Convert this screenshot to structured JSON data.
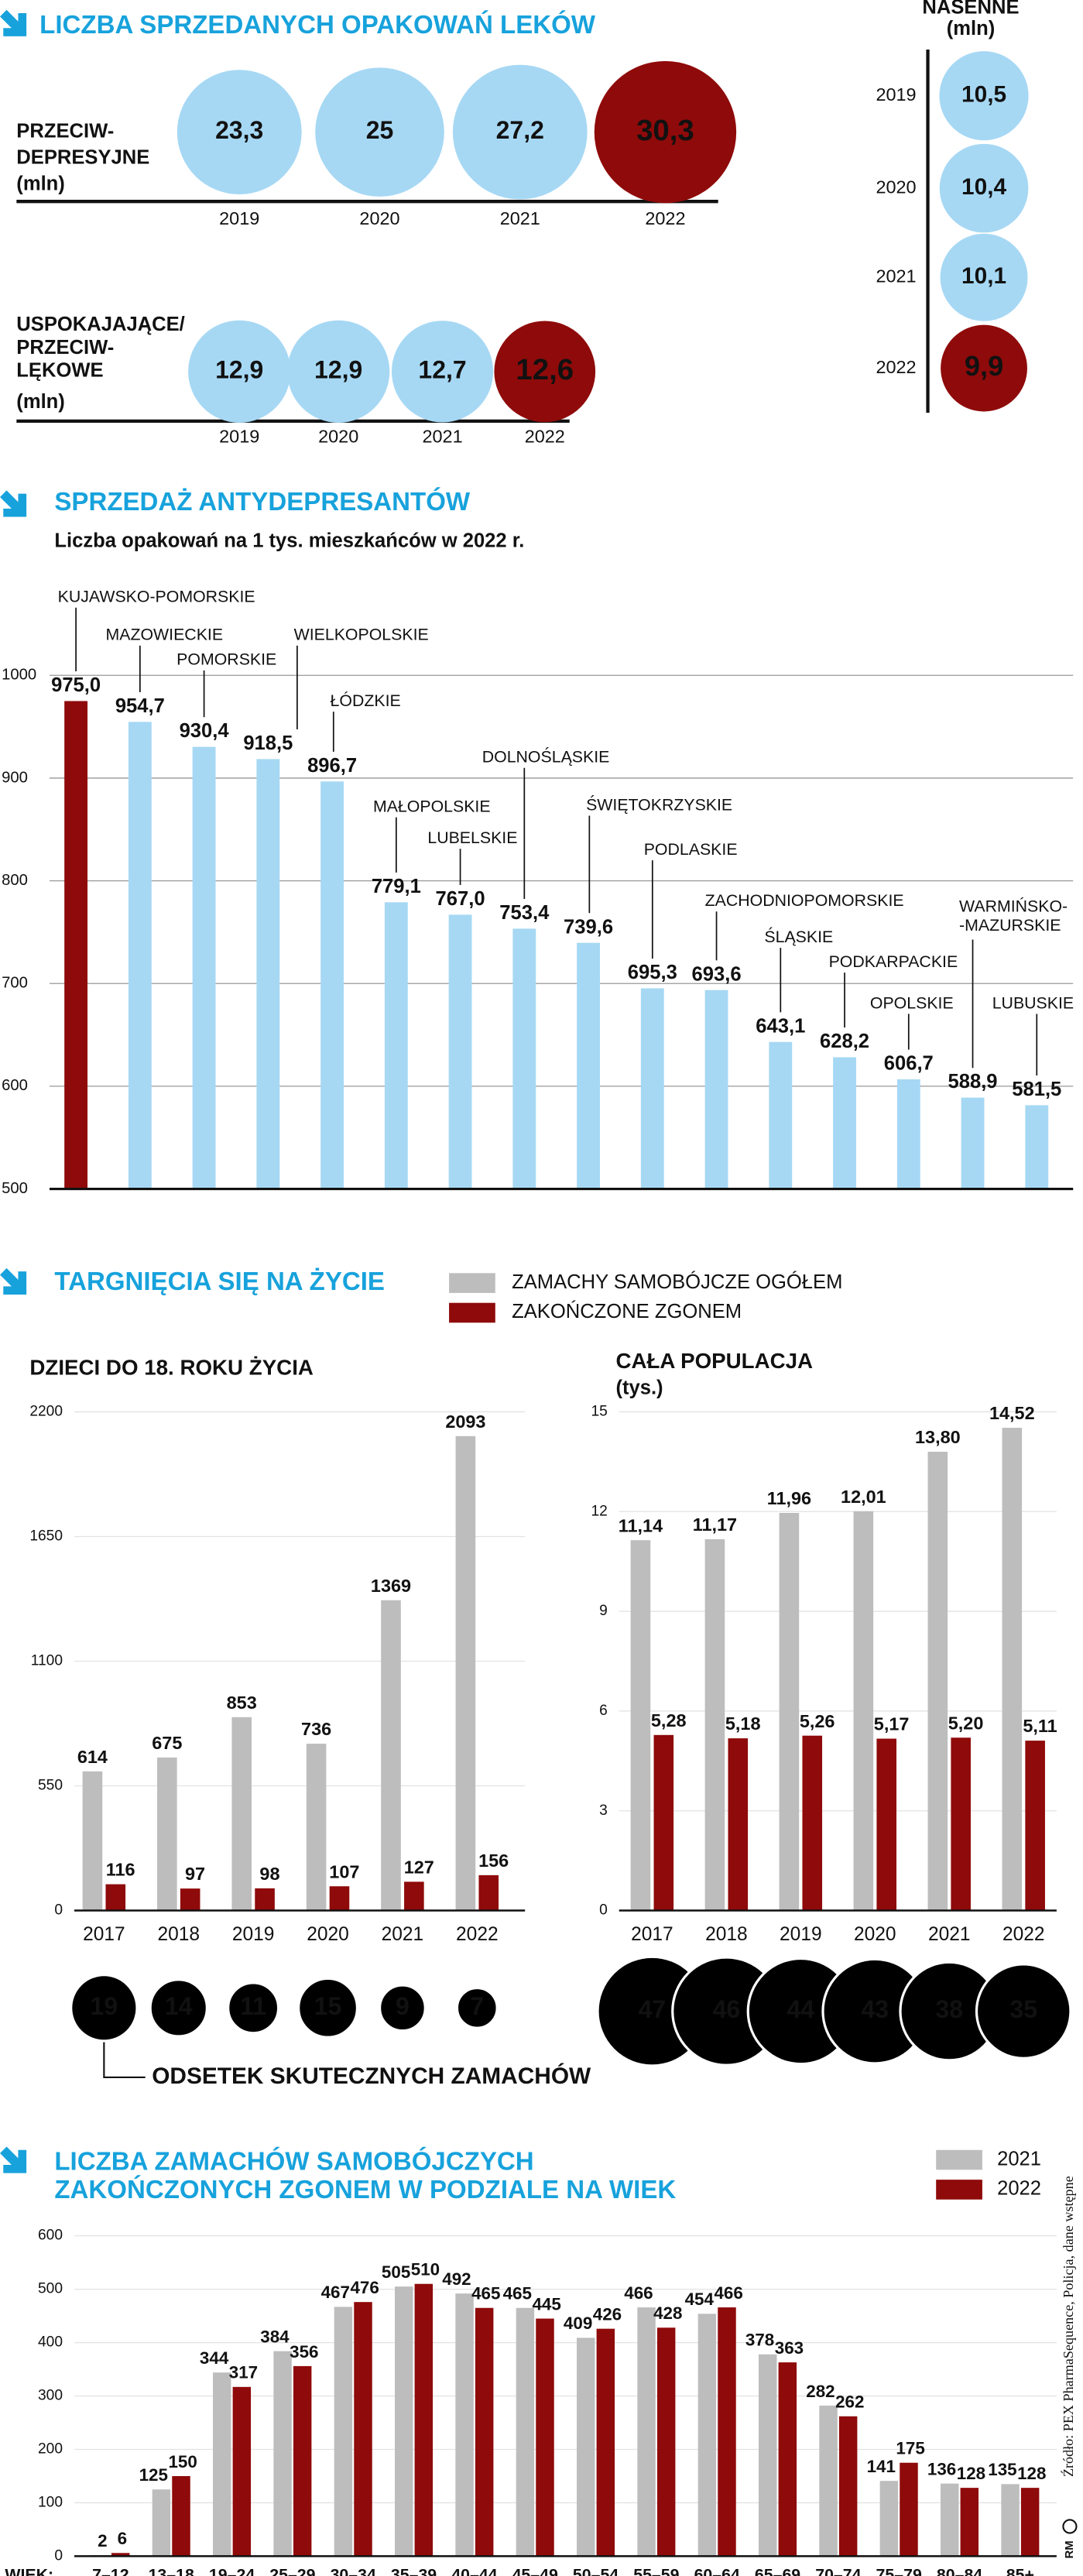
{
  "source": "Źródło: PEX PharmaSequence, Policja, dane wstępne",
  "author": "RM",
  "chart_data": [
    {
      "type": "bubble",
      "title": "LICZBA SPRZEDANYCH OPAKOWAŃ LEKÓW",
      "label": [
        "PRZECIW-",
        "DEPRESYJNE",
        "(mln)"
      ],
      "categories": [
        "2019",
        "2020",
        "2021",
        "2022"
      ],
      "values": [
        23.3,
        25,
        27.2,
        30.3
      ],
      "value_labels": [
        "23,3",
        "25",
        "27,2",
        "30,3"
      ],
      "colors": [
        "#a6d8f4",
        "#a6d8f4",
        "#a6d8f4",
        "#8f0a0a"
      ]
    },
    {
      "type": "bubble",
      "label": [
        "USPOKAJAJĄCE/",
        "PRZECIW-",
        "LĘKOWE",
        "(mln)"
      ],
      "categories": [
        "2019",
        "2020",
        "2021",
        "2022"
      ],
      "values": [
        12.9,
        12.9,
        12.7,
        12.6
      ],
      "value_labels": [
        "12,9",
        "12,9",
        "12,7",
        "12,6"
      ],
      "colors": [
        "#a6d8f4",
        "#a6d8f4",
        "#a6d8f4",
        "#8f0a0a"
      ]
    },
    {
      "type": "bubble",
      "orientation": "vertical",
      "label": [
        "NASENNE",
        "(mln)"
      ],
      "categories": [
        "2019",
        "2020",
        "2021",
        "2022"
      ],
      "values": [
        10.5,
        10.4,
        10.1,
        9.9
      ],
      "value_labels": [
        "10,5",
        "10,4",
        "10,1",
        "9,9"
      ],
      "colors": [
        "#a6d8f4",
        "#a6d8f4",
        "#a6d8f4",
        "#8f0a0a"
      ]
    },
    {
      "type": "bar",
      "title": "SPRZEDAŻ ANTYDEPRESANTÓW",
      "subtitle": "Liczba opakowań na 1 tys. mieszkańców w 2022 r.",
      "categories": [
        "KUJAWSKO-POMORSKIE",
        "MAZOWIECKIE",
        "POMORSKIE",
        "WIELKOPOLSKIE",
        "ŁÓDZKIE",
        "MAŁOPOLSKIE",
        "LUBELSKIE",
        "DOLNOŚLĄSKIE",
        "ŚWIĘTOKRZYSKIE",
        "PODLASKIE",
        "ZACHODNIOPOMORSKIE",
        "ŚLĄSKIE",
        "PODKARPACKIE",
        "OPOLSKIE",
        "WARMIŃSKO-\n-MAZURSKIE",
        "LUBUSKIE"
      ],
      "values": [
        975.0,
        954.7,
        930.4,
        918.5,
        896.7,
        779.1,
        767.0,
        753.4,
        739.6,
        695.3,
        693.6,
        643.1,
        628.2,
        606.7,
        588.9,
        581.5
      ],
      "value_labels": [
        "975,0",
        "954,7",
        "930,4",
        "918,5",
        "896,7",
        "779,1",
        "767,0",
        "753,4",
        "739,6",
        "695,3",
        "693,6",
        "643,1",
        "628,2",
        "606,7",
        "588,9",
        "581,5"
      ],
      "colors": [
        "#8f0a0a",
        "#a6d8f4",
        "#a6d8f4",
        "#a6d8f4",
        "#a6d8f4",
        "#a6d8f4",
        "#a6d8f4",
        "#a6d8f4",
        "#a6d8f4",
        "#a6d8f4",
        "#a6d8f4",
        "#a6d8f4",
        "#a6d8f4",
        "#a6d8f4",
        "#a6d8f4",
        "#a6d8f4"
      ],
      "ylim": [
        500,
        1000
      ],
      "yticks": [
        500,
        600,
        700,
        800,
        900,
        1000
      ],
      "grid": true
    },
    {
      "type": "grouped_bar",
      "title": "TARGNIĘCIA SIĘ NA ŻYCIE",
      "subtitle": "DZIECI DO 18. ROKU ŻYCIA",
      "categories": [
        "2017",
        "2018",
        "2019",
        "2020",
        "2021",
        "2022"
      ],
      "series": [
        {
          "name": "ZAMACHY SAMOBÓJCZE OGÓŁEM",
          "color": "#bdbdbd",
          "values": [
            614,
            675,
            853,
            736,
            1369,
            2093
          ]
        },
        {
          "name": "ZAKOŃCZONE ZGONEM",
          "color": "#8f0a0a",
          "values": [
            116,
            97,
            98,
            107,
            127,
            156
          ]
        }
      ],
      "ylim": [
        0,
        2200
      ],
      "yticks": [
        0,
        550,
        1100,
        1650,
        2200
      ],
      "grid": true,
      "rates": {
        "name": "ODSETEK SKUTECZNYCH ZAMACHÓW",
        "color": "#000000",
        "values": [
          19,
          14,
          11,
          15,
          9,
          7
        ]
      }
    },
    {
      "type": "grouped_bar",
      "subtitle": "CAŁA POPULACJA",
      "ylabel": "(tys.)",
      "categories": [
        "2017",
        "2018",
        "2019",
        "2020",
        "2021",
        "2022"
      ],
      "series": [
        {
          "color": "#bdbdbd",
          "values": [
            11.14,
            11.17,
            11.96,
            12.01,
            13.8,
            14.52
          ],
          "value_labels": [
            "11,14",
            "11,17",
            "11,96",
            "12,01",
            "13,80",
            "14,52"
          ]
        },
        {
          "color": "#8f0a0a",
          "values": [
            5.28,
            5.18,
            5.26,
            5.17,
            5.2,
            5.11
          ],
          "value_labels": [
            "5,28",
            "5,18",
            "5,26",
            "5,17",
            "5,20",
            "5,11"
          ]
        }
      ],
      "ylim": [
        0,
        15
      ],
      "yticks": [
        0,
        3,
        6,
        9,
        12,
        15
      ],
      "grid": true,
      "rates": {
        "color": "#000000",
        "values": [
          47,
          46,
          44,
          43,
          38,
          35
        ]
      }
    },
    {
      "type": "grouped_bar",
      "title": [
        "LICZBA ZAMACHÓW SAMOBÓJCZYCH",
        "ZAKOŃCZONYCH ZGONEM W PODZIALE NA WIEK"
      ],
      "xlabel": "WIEK:",
      "categories": [
        "7–12",
        "13–18",
        "19–24",
        "25–29",
        "30–34",
        "35–39",
        "40–44",
        "45–49",
        "50–54",
        "55–59",
        "60–64",
        "65–69",
        "70–74",
        "75–79",
        "80–84",
        "85+"
      ],
      "series": [
        {
          "name": "2021",
          "color": "#bdbdbd",
          "values": [
            2,
            125,
            344,
            384,
            467,
            505,
            492,
            465,
            409,
            466,
            454,
            378,
            282,
            141,
            136,
            135
          ]
        },
        {
          "name": "2022",
          "color": "#8f0a0a",
          "values": [
            6,
            150,
            317,
            356,
            476,
            510,
            465,
            445,
            426,
            428,
            466,
            363,
            262,
            175,
            128,
            128
          ]
        }
      ],
      "ylim": [
        0,
        600
      ],
      "yticks": [
        0,
        100,
        200,
        300,
        400,
        500,
        600
      ],
      "grid": true
    }
  ]
}
